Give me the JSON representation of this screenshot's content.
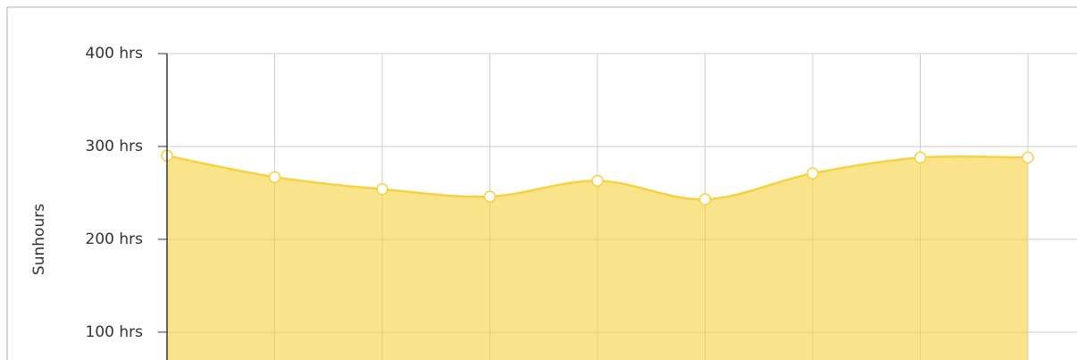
{
  "chart_data": {
    "type": "area",
    "y_axis_label": "Sunhours",
    "categories": [
      null,
      null,
      null,
      null,
      null,
      null,
      null,
      null,
      null
    ],
    "series": [
      {
        "name": null,
        "color": "#f7d23e",
        "values": [
          290,
          267,
          254,
          246,
          263,
          243,
          271,
          288,
          288
        ]
      }
    ],
    "ylim": [
      70,
      400
    ],
    "yticks": [
      {
        "value": 100,
        "label": "100 hrs"
      },
      {
        "value": 200,
        "label": "200 hrs"
      },
      {
        "value": 300,
        "label": "300 hrs"
      },
      {
        "value": 400,
        "label": "400 hrs"
      }
    ],
    "grid": true
  }
}
